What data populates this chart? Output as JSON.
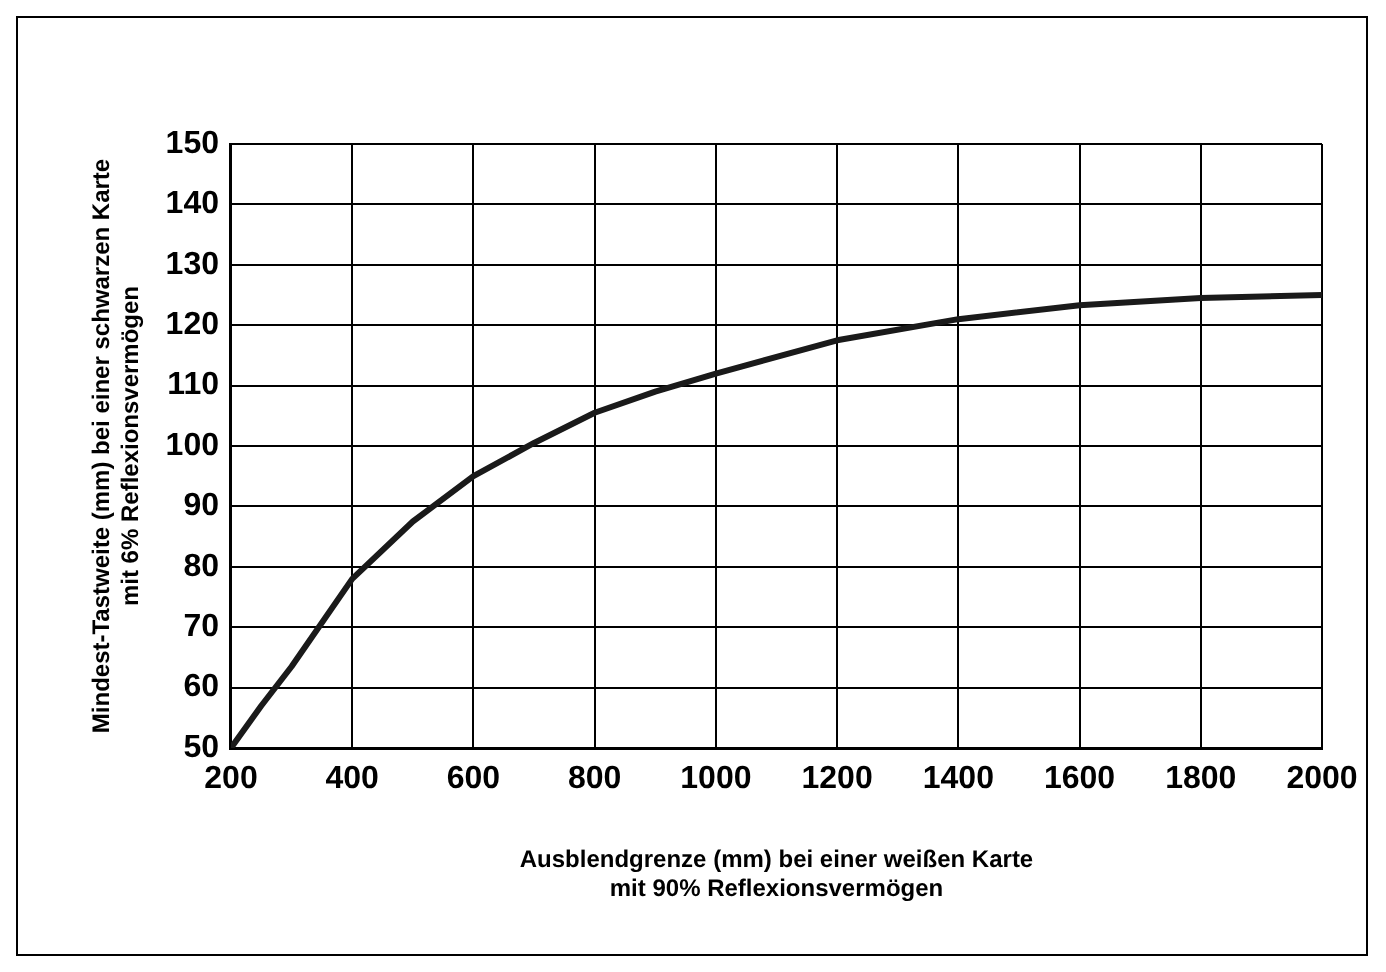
{
  "chart_data": {
    "type": "line",
    "xlabel": "Ausblendgrenze (mm) bei einer weißen Karte\nmit 90% Reflexionsvermögen",
    "ylabel": "Mindest-Tastweite (mm) bei einer schwarzen Karte\nmit 6% Reflexionsvermögen",
    "x": [
      200,
      250,
      300,
      400,
      500,
      600,
      700,
      800,
      900,
      1000,
      1200,
      1400,
      1600,
      1800,
      2000
    ],
    "series": [
      {
        "color": "#1a1a1a",
        "values": [
          50,
          57,
          63.5,
          78,
          87.5,
          95,
          100.5,
          105.5,
          109,
          112,
          117.5,
          121,
          123.3,
          124.5,
          125
        ]
      }
    ],
    "xlim": [
      200,
      2000
    ],
    "xticks": [
      200,
      400,
      600,
      800,
      1000,
      1200,
      1400,
      1600,
      1800,
      2000
    ],
    "ylim": [
      50,
      150
    ],
    "yticks": [
      50,
      60,
      70,
      80,
      90,
      100,
      110,
      120,
      130,
      140,
      150
    ],
    "grid": true,
    "legend": false,
    "marker": "none",
    "line_style": "solid"
  }
}
